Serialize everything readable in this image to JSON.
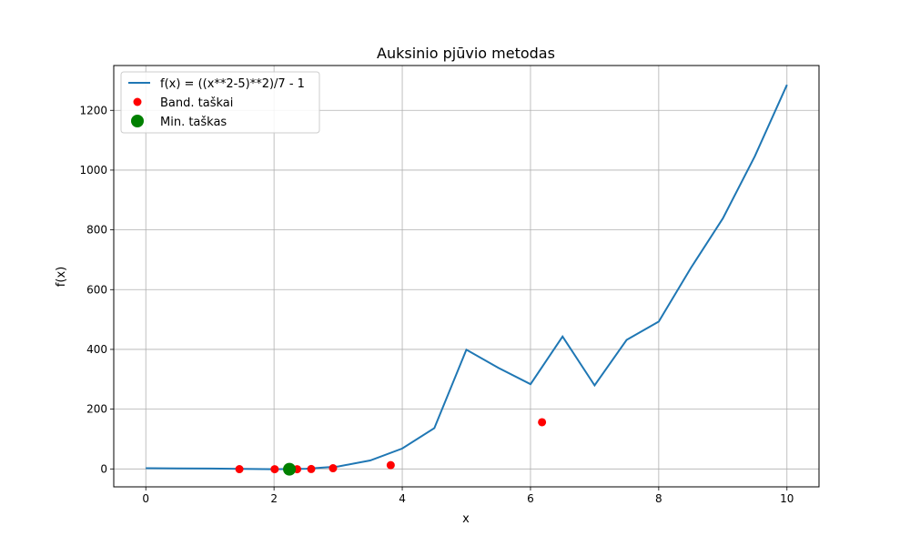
{
  "chart_data": {
    "type": "line",
    "title": "Auksinio pjūvio metodas",
    "xlabel": "x",
    "ylabel": "f(x)",
    "xlim": [
      -0.5,
      10.5
    ],
    "ylim": [
      -60,
      1350
    ],
    "xticks": [
      0,
      2,
      4,
      6,
      8,
      10
    ],
    "yticks": [
      0,
      200,
      400,
      600,
      800,
      1000,
      1200
    ],
    "grid": true,
    "legend_position": "top-left",
    "curve": {
      "name": "f(x) = ((x**2-5)**2)/7 - 1",
      "color": "#1f77b4",
      "x": [
        0,
        0.5,
        1,
        1.5,
        2,
        2.5,
        3,
        3.5,
        4,
        4.5,
        5,
        5.5,
        6,
        6.5,
        7,
        7.5,
        8,
        8.5,
        9,
        9.5,
        10
      ],
      "y": [
        2.57,
        1.89,
        1.29,
        0.09,
        -0.86,
        0.62,
        8.14,
        28.2,
        68.1,
        136.5,
        399.0,
        337.9,
        283.6,
        443.0,
        279.6,
        431.8,
        492.9,
        672.0,
        838.1,
        1046.3,
        1285.4
      ]
    },
    "test_points": {
      "name": "Band. taškai",
      "color": "#ff0000",
      "x": [
        1.46,
        2.01,
        2.24,
        2.36,
        2.58,
        2.92,
        3.82,
        6.18
      ],
      "y": [
        -0.7,
        -0.9,
        -1.0,
        -0.9,
        -0.4,
        2.4,
        12.6,
        156.3
      ]
    },
    "min_point": {
      "name": "Min. taškas",
      "color": "#008000",
      "x": 2.24,
      "y": -1.0
    }
  }
}
